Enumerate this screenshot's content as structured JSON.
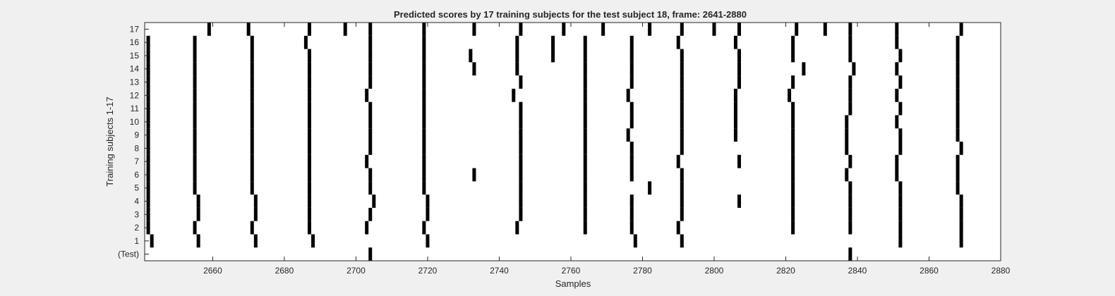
{
  "chart_data": {
    "type": "raster",
    "title": "Predicted scores by 17 training subjects for the test subject 18, frame: 2641-2880",
    "xlabel": "Samples",
    "ylabel": "Training subjects 1-17",
    "xlim": [
      2641,
      2880
    ],
    "x_ticks": [
      2660,
      2680,
      2700,
      2720,
      2740,
      2760,
      2780,
      2800,
      2820,
      2840,
      2860,
      2880
    ],
    "y_tick_labels": [
      "(Test)",
      "1",
      "2",
      "3",
      "4",
      "5",
      "6",
      "7",
      "8",
      "9",
      "10",
      "11",
      "12",
      "13",
      "14",
      "15",
      "16",
      "17"
    ],
    "grid": false,
    "background": "#ffffff",
    "mark_color": "#000000",
    "series": [
      {
        "row": 0,
        "x": [
          2704,
          2838
        ]
      },
      {
        "row": 1,
        "x": [
          2643,
          2656,
          2672,
          2688,
          2720,
          2778,
          2791,
          2852,
          2869
        ]
      },
      {
        "row": 2,
        "x": [
          2642,
          2655,
          2671,
          2687,
          2703,
          2719,
          2745,
          2764,
          2777,
          2790,
          2822,
          2838,
          2852,
          2869
        ]
      },
      {
        "row": 3,
        "x": [
          2642,
          2656,
          2672,
          2687,
          2704,
          2720,
          2746,
          2764,
          2777,
          2791,
          2822,
          2838,
          2852,
          2869
        ]
      },
      {
        "row": 4,
        "x": [
          2642,
          2656,
          2672,
          2687,
          2705,
          2720,
          2746,
          2764,
          2777,
          2791,
          2807,
          2822,
          2838,
          2852,
          2869
        ]
      },
      {
        "row": 5,
        "x": [
          2642,
          2655,
          2671,
          2687,
          2704,
          2719,
          2746,
          2764,
          2782,
          2791,
          2822,
          2838,
          2852,
          2868
        ]
      },
      {
        "row": 6,
        "x": [
          2642,
          2655,
          2671,
          2687,
          2704,
          2719,
          2733,
          2746,
          2764,
          2777,
          2791,
          2822,
          2837,
          2851,
          2868
        ]
      },
      {
        "row": 7,
        "x": [
          2642,
          2655,
          2671,
          2687,
          2703,
          2719,
          2746,
          2764,
          2777,
          2790,
          2807,
          2822,
          2838,
          2851,
          2868
        ]
      },
      {
        "row": 8,
        "x": [
          2642,
          2655,
          2671,
          2687,
          2704,
          2719,
          2746,
          2764,
          2777,
          2791,
          2822,
          2837,
          2852,
          2869
        ]
      },
      {
        "row": 9,
        "x": [
          2642,
          2655,
          2671,
          2687,
          2704,
          2719,
          2746,
          2764,
          2776,
          2791,
          2806,
          2822,
          2837,
          2852,
          2868
        ]
      },
      {
        "row": 10,
        "x": [
          2642,
          2655,
          2671,
          2687,
          2704,
          2719,
          2746,
          2764,
          2777,
          2791,
          2806,
          2822,
          2837,
          2851,
          2868
        ]
      },
      {
        "row": 11,
        "x": [
          2642,
          2655,
          2671,
          2687,
          2704,
          2719,
          2746,
          2764,
          2777,
          2791,
          2806,
          2822,
          2838,
          2852,
          2868
        ]
      },
      {
        "row": 12,
        "x": [
          2642,
          2655,
          2671,
          2687,
          2703,
          2719,
          2744,
          2764,
          2776,
          2791,
          2806,
          2821,
          2838,
          2851,
          2868
        ]
      },
      {
        "row": 13,
        "x": [
          2642,
          2655,
          2671,
          2687,
          2704,
          2719,
          2746,
          2764,
          2777,
          2791,
          2807,
          2822,
          2838,
          2852,
          2868
        ]
      },
      {
        "row": 14,
        "x": [
          2642,
          2655,
          2671,
          2687,
          2704,
          2719,
          2733,
          2745,
          2764,
          2777,
          2791,
          2807,
          2825,
          2839,
          2851,
          2868
        ]
      },
      {
        "row": 15,
        "x": [
          2642,
          2655,
          2671,
          2687,
          2704,
          2719,
          2732,
          2745,
          2755,
          2764,
          2777,
          2791,
          2807,
          2822,
          2838,
          2852,
          2868
        ]
      },
      {
        "row": 16,
        "x": [
          2642,
          2655,
          2671,
          2686,
          2704,
          2719,
          2745,
          2755,
          2764,
          2777,
          2790,
          2806,
          2822,
          2838,
          2851,
          2868
        ]
      },
      {
        "row": 17,
        "x": [
          2659,
          2670,
          2687,
          2697,
          2704,
          2719,
          2733,
          2746,
          2758,
          2769,
          2782,
          2791,
          2800,
          2807,
          2823,
          2831,
          2838,
          2851,
          2869
        ]
      }
    ]
  }
}
